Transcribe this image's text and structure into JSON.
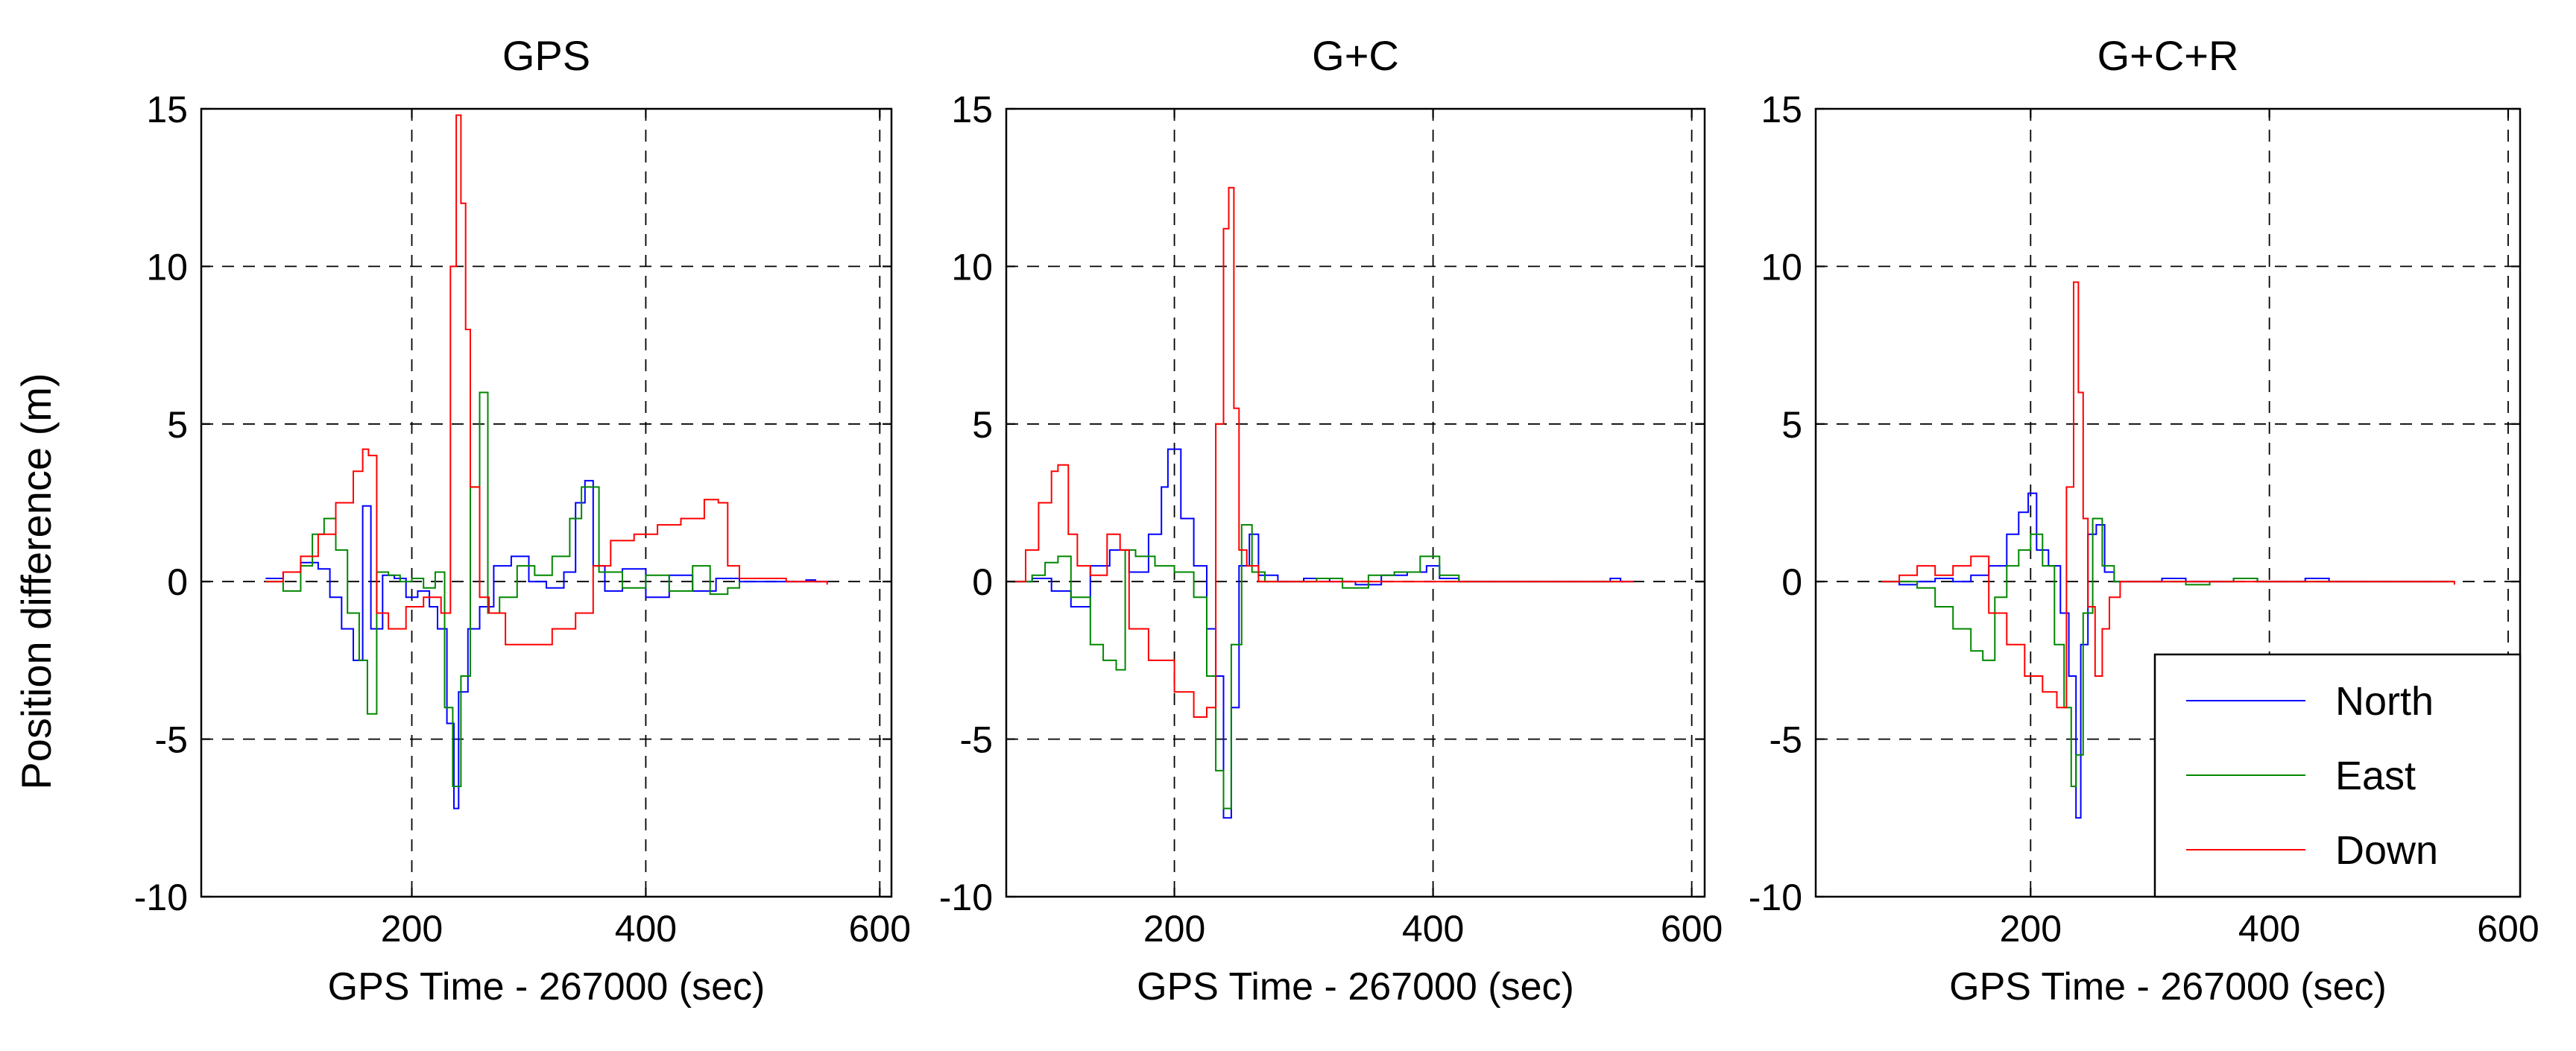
{
  "figure": {
    "y_label": "Position difference (m)"
  },
  "chart_data": [
    {
      "type": "line",
      "title": "GPS",
      "xlabel": "GPS Time - 267000 (sec)",
      "ylabel": "Position difference (m)",
      "xlim": [
        20,
        610
      ],
      "ylim": [
        -10,
        15
      ],
      "xticks": [
        200,
        400,
        600
      ],
      "yticks": [
        -10,
        -5,
        0,
        5,
        10,
        15
      ],
      "grid": true,
      "legend": null,
      "series": [
        {
          "name": "North",
          "color": "#0000ff",
          "x": [
            75,
            90,
            105,
            120,
            130,
            140,
            150,
            158,
            165,
            175,
            185,
            195,
            205,
            215,
            222,
            230,
            236,
            240,
            248,
            258,
            270,
            285,
            300,
            315,
            330,
            340,
            348,
            355,
            365,
            380,
            400,
            420,
            440,
            460,
            480,
            500,
            520,
            537,
            545,
            555
          ],
          "y": [
            0.1,
            0.3,
            0.6,
            0.4,
            -0.5,
            -1.5,
            -2.5,
            2.4,
            -1.5,
            0.2,
            0.1,
            -0.5,
            -0.3,
            -0.8,
            -1.5,
            -4.5,
            -7.2,
            -3.5,
            -1.5,
            -0.8,
            0.5,
            0.8,
            0.0,
            -0.2,
            0.3,
            2.5,
            3.2,
            0.5,
            -0.3,
            0.4,
            -0.5,
            0.2,
            -0.3,
            0.1,
            0.0,
            0.0,
            0.0,
            0.05,
            0.0,
            0.0
          ]
        },
        {
          "name": "East",
          "color": "#008800",
          "x": [
            75,
            90,
            105,
            115,
            125,
            135,
            145,
            155,
            162,
            170,
            180,
            190,
            200,
            210,
            220,
            228,
            235,
            242,
            250,
            258,
            265,
            275,
            290,
            305,
            320,
            335,
            345,
            360,
            380,
            400,
            420,
            440,
            455,
            470,
            480
          ],
          "y": [
            0.0,
            -0.3,
            0.5,
            1.5,
            2.0,
            1.0,
            -1.0,
            -2.5,
            -4.2,
            0.3,
            0.2,
            0.0,
            0.1,
            -0.2,
            0.3,
            -4.0,
            -6.5,
            -3.0,
            3.0,
            6.0,
            -1.0,
            -0.5,
            0.5,
            0.2,
            0.8,
            2.0,
            3.0,
            0.3,
            -0.2,
            0.2,
            -0.3,
            0.5,
            -0.4,
            -0.2,
            0.0
          ]
        },
        {
          "name": "Down",
          "color": "#ff0000",
          "x": [
            75,
            90,
            105,
            120,
            135,
            150,
            158,
            163,
            170,
            180,
            195,
            210,
            225,
            233,
            238,
            242,
            246,
            250,
            258,
            266,
            280,
            300,
            320,
            340,
            355,
            370,
            390,
            410,
            430,
            450,
            462,
            470,
            480,
            500,
            520,
            540,
            555
          ],
          "y": [
            0.0,
            0.3,
            0.8,
            1.5,
            2.5,
            3.5,
            4.2,
            4.0,
            -1.0,
            -1.5,
            -0.8,
            -0.5,
            -1.0,
            10.0,
            14.8,
            12.0,
            8.0,
            3.0,
            -0.5,
            -1.0,
            -2.0,
            -2.0,
            -1.5,
            -1.0,
            0.5,
            1.3,
            1.5,
            1.8,
            2.0,
            2.6,
            2.5,
            0.5,
            0.1,
            0.1,
            0.0,
            0.0,
            -0.1
          ]
        }
      ]
    },
    {
      "type": "line",
      "title": "G+C",
      "xlabel": "GPS Time - 267000 (sec)",
      "ylabel": "",
      "xlim": [
        70,
        610
      ],
      "ylim": [
        -10,
        15
      ],
      "xticks": [
        200,
        400,
        600
      ],
      "yticks": [
        -10,
        -5,
        0,
        5,
        10,
        15
      ],
      "grid": true,
      "legend": null,
      "series": [
        {
          "name": "North",
          "color": "#0000ff",
          "x": [
            75,
            90,
            105,
            120,
            135,
            150,
            165,
            180,
            190,
            195,
            205,
            215,
            225,
            232,
            238,
            244,
            250,
            258,
            265,
            280,
            300,
            320,
            340,
            360,
            380,
            395,
            405,
            420,
            440,
            460,
            480,
            500,
            520,
            537,
            545,
            555
          ],
          "y": [
            0.0,
            0.1,
            -0.3,
            -0.8,
            0.5,
            1.0,
            0.3,
            1.5,
            3.0,
            4.2,
            2.0,
            0.5,
            -1.5,
            -3.0,
            -7.5,
            -4.0,
            0.5,
            1.5,
            0.2,
            0.0,
            0.1,
            0.0,
            -0.1,
            0.2,
            0.3,
            0.5,
            0.1,
            0.0,
            0.0,
            0.0,
            0.0,
            0.0,
            0.0,
            0.1,
            0.0,
            0.0
          ]
        },
        {
          "name": "East",
          "color": "#008800",
          "x": [
            75,
            90,
            100,
            110,
            120,
            135,
            145,
            155,
            162,
            170,
            185,
            200,
            215,
            225,
            232,
            238,
            244,
            252,
            260,
            270,
            290,
            310,
            330,
            350,
            370,
            390,
            405,
            420,
            440,
            460,
            480,
            500,
            520,
            540
          ],
          "y": [
            0.0,
            0.2,
            0.6,
            0.8,
            -0.5,
            -2.0,
            -2.5,
            -2.8,
            1.0,
            0.8,
            0.5,
            0.3,
            -0.5,
            -3.0,
            -6.0,
            -7.2,
            -2.0,
            1.8,
            0.3,
            0.0,
            0.0,
            0.1,
            -0.2,
            0.2,
            0.3,
            0.8,
            0.2,
            0.0,
            0.0,
            0.0,
            0.0,
            0.0,
            0.0,
            0.0
          ]
        },
        {
          "name": "Down",
          "color": "#ff0000",
          "x": [
            75,
            85,
            95,
            105,
            110,
            118,
            125,
            135,
            148,
            158,
            165,
            180,
            200,
            215,
            225,
            232,
            238,
            242,
            246,
            250,
            256,
            265,
            280,
            300,
            320,
            340,
            360,
            380,
            400,
            420,
            440,
            460,
            480,
            500,
            520,
            540,
            555
          ],
          "y": [
            0.0,
            1.0,
            2.5,
            3.5,
            3.7,
            1.5,
            0.5,
            0.2,
            1.5,
            1.0,
            -1.5,
            -2.5,
            -3.5,
            -4.3,
            -4.0,
            5.0,
            11.2,
            12.5,
            5.5,
            1.0,
            0.5,
            0.0,
            0.0,
            0.0,
            0.0,
            0.0,
            0.0,
            0.0,
            0.0,
            0.0,
            0.0,
            0.0,
            0.0,
            0.0,
            0.0,
            0.0,
            0.0
          ]
        }
      ]
    },
    {
      "type": "line",
      "title": "G+C+R",
      "xlabel": "GPS Time - 267000 (sec)",
      "ylabel": "",
      "xlim": [
        20,
        610
      ],
      "ylim": [
        -10,
        15
      ],
      "xticks": [
        200,
        400,
        600
      ],
      "yticks": [
        -10,
        -5,
        0,
        5,
        10,
        15
      ],
      "grid": true,
      "legend": "bottom-right",
      "series": [
        {
          "name": "North",
          "color": "#0000ff",
          "x": [
            75,
            90,
            105,
            120,
            135,
            150,
            165,
            180,
            190,
            198,
            205,
            215,
            225,
            232,
            238,
            242,
            248,
            255,
            262,
            270,
            290,
            310,
            330,
            350,
            370,
            390,
            410,
            430,
            450,
            470,
            490,
            510,
            530,
            550
          ],
          "y": [
            0.0,
            -0.1,
            0.0,
            0.1,
            0.0,
            0.2,
            0.5,
            1.5,
            2.2,
            2.8,
            1.0,
            0.5,
            -1.0,
            -3.0,
            -7.5,
            -2.0,
            1.5,
            1.8,
            0.3,
            0.0,
            0.0,
            0.1,
            0.0,
            0.0,
            0.1,
            0.0,
            0.0,
            0.1,
            0.0,
            0.0,
            0.0,
            0.0,
            0.0,
            0.0
          ]
        },
        {
          "name": "East",
          "color": "#008800",
          "x": [
            75,
            90,
            105,
            120,
            135,
            150,
            160,
            170,
            180,
            190,
            200,
            210,
            220,
            228,
            234,
            238,
            244,
            252,
            260,
            270,
            290,
            310,
            330,
            350,
            370,
            390,
            410,
            430,
            450,
            470,
            490,
            510,
            530,
            550
          ],
          "y": [
            0.0,
            0.0,
            -0.2,
            -0.8,
            -1.5,
            -2.2,
            -2.5,
            -0.5,
            0.5,
            1.0,
            1.5,
            0.5,
            -2.0,
            -4.0,
            -6.5,
            -5.5,
            -1.0,
            2.0,
            0.5,
            0.0,
            0.0,
            0.0,
            -0.1,
            0.0,
            0.1,
            0.0,
            0.0,
            0.0,
            0.0,
            0.0,
            0.0,
            0.0,
            0.0,
            0.0
          ]
        },
        {
          "name": "Down",
          "color": "#ff0000",
          "x": [
            75,
            90,
            105,
            120,
            135,
            150,
            165,
            180,
            195,
            210,
            222,
            230,
            236,
            240,
            244,
            248,
            254,
            260,
            266,
            275,
            300,
            330,
            360,
            390,
            420,
            450,
            480,
            510,
            540,
            555
          ],
          "y": [
            0.0,
            0.2,
            0.5,
            0.2,
            0.5,
            0.8,
            -1.0,
            -2.0,
            -3.0,
            -3.5,
            -4.0,
            3.0,
            9.5,
            6.0,
            2.0,
            -0.8,
            -3.0,
            -1.5,
            -0.5,
            0.0,
            0.0,
            0.0,
            0.0,
            0.0,
            0.0,
            0.0,
            0.0,
            0.0,
            0.0,
            -0.1
          ]
        }
      ]
    }
  ]
}
